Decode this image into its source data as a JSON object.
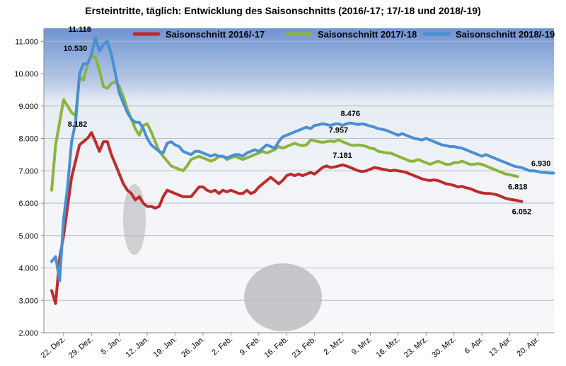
{
  "chart_data": {
    "type": "line",
    "title": "Ersteintritte, täglich: Entwicklung des Saisonschnitts (2016/-17; 17/-18 und 2018/-19)",
    "legend": "top",
    "grid": true,
    "ylim": [
      2000,
      11400
    ],
    "yticks": [
      {
        "value": 2000,
        "label": "2.000"
      },
      {
        "value": 3000,
        "label": "3.000"
      },
      {
        "value": 4000,
        "label": "4.000"
      },
      {
        "value": 5000,
        "label": "5.000"
      },
      {
        "value": 6000,
        "label": "6.000"
      },
      {
        "value": 7000,
        "label": "7.000"
      },
      {
        "value": 8000,
        "label": "8.000"
      },
      {
        "value": 9000,
        "label": "9.000"
      },
      {
        "value": 10000,
        "label": "10.000"
      },
      {
        "value": 11000,
        "label": "11.000"
      }
    ],
    "categories": [
      null,
      null,
      null,
      "22. Dez.",
      null,
      null,
      null,
      null,
      null,
      null,
      "29. Dez.",
      null,
      null,
      null,
      null,
      null,
      null,
      "5. Jan.",
      null,
      null,
      null,
      null,
      null,
      null,
      "12. Jan.",
      null,
      null,
      null,
      null,
      null,
      null,
      "19. Jan.",
      null,
      null,
      null,
      null,
      null,
      null,
      "26. Jan.",
      null,
      null,
      null,
      null,
      null,
      null,
      "2. Feb.",
      null,
      null,
      null,
      null,
      null,
      null,
      "9. Feb.",
      null,
      null,
      null,
      null,
      null,
      null,
      "16. Feb.",
      null,
      null,
      null,
      null,
      null,
      null,
      "23. Feb.",
      null,
      null,
      null,
      null,
      null,
      null,
      "2. Mrz.",
      null,
      null,
      null,
      null,
      null,
      null,
      "9. Mrz.",
      null,
      null,
      null,
      null,
      null,
      null,
      "16. Mrz.",
      null,
      null,
      null,
      null,
      null,
      null,
      "23. Mrz.",
      null,
      null,
      null,
      null,
      null,
      null,
      "30. Mrz.",
      null,
      null,
      null,
      null,
      null,
      null,
      "6. Apr.",
      null,
      null,
      null,
      null,
      null,
      null,
      "13. Apr.",
      null,
      null,
      null,
      null,
      null,
      null,
      "20. Apr.",
      null,
      null,
      null,
      null
    ],
    "series": [
      {
        "name": "Saisonschnitt 2016/-17",
        "color": "#be2b2b",
        "values": [
          3300,
          2900,
          4300,
          5000,
          5900,
          6800,
          7300,
          7800,
          7900,
          8000,
          8182,
          7900,
          7600,
          7900,
          7900,
          7500,
          7200,
          6900,
          6600,
          6400,
          6300,
          6100,
          6200,
          6000,
          5900,
          5900,
          5850,
          5900,
          6200,
          6400,
          6350,
          6300,
          6250,
          6200,
          6200,
          6200,
          6350,
          6500,
          6500,
          6400,
          6350,
          6400,
          6300,
          6400,
          6350,
          6400,
          6350,
          6300,
          6300,
          6400,
          6300,
          6350,
          6500,
          6600,
          6700,
          6800,
          6700,
          6600,
          6700,
          6850,
          6900,
          6850,
          6900,
          6850,
          6900,
          6950,
          6900,
          7000,
          7100,
          7150,
          7100,
          7120,
          7150,
          7181,
          7150,
          7100,
          7050,
          7000,
          6980,
          7000,
          7050,
          7100,
          7080,
          7050,
          7030,
          7000,
          7020,
          7000,
          6980,
          6950,
          6900,
          6850,
          6800,
          6750,
          6720,
          6700,
          6720,
          6700,
          6650,
          6600,
          6580,
          6550,
          6500,
          6520,
          6480,
          6450,
          6400,
          6350,
          6320,
          6300,
          6300,
          6280,
          6250,
          6200,
          6150,
          6120,
          6100,
          6080,
          6052,
          null,
          null,
          null,
          null,
          null,
          null,
          null,
          null
        ],
        "value_labels": [
          null,
          null,
          null,
          null,
          null,
          null,
          null,
          null,
          null,
          null,
          "8.182",
          null,
          null,
          null,
          null,
          null,
          null,
          null,
          null,
          null,
          null,
          null,
          null,
          null,
          null,
          null,
          null,
          null,
          null,
          null,
          null,
          null,
          null,
          null,
          null,
          null,
          null,
          null,
          null,
          null,
          null,
          null,
          null,
          null,
          null,
          null,
          null,
          null,
          null,
          null,
          null,
          null,
          null,
          null,
          null,
          null,
          null,
          null,
          null,
          null,
          null,
          null,
          null,
          null,
          null,
          null,
          null,
          null,
          null,
          null,
          null,
          null,
          null,
          "7.181",
          null,
          null,
          null,
          null,
          null,
          null,
          null,
          null,
          null,
          null,
          null,
          null,
          null,
          null,
          null,
          null,
          null,
          null,
          null,
          null,
          null,
          null,
          null,
          null,
          null,
          null,
          null,
          null,
          null,
          null,
          null,
          null,
          null,
          null,
          null,
          null,
          null,
          null,
          null,
          null,
          null,
          null,
          null,
          null,
          "6.052",
          null,
          null,
          null,
          null,
          null,
          null,
          null,
          null
        ]
      },
      {
        "name": "Saisonschnitt 2017/-18",
        "color": "#8cb43c",
        "values": [
          6400,
          7800,
          8500,
          9200,
          9000,
          8800,
          8700,
          9900,
          9800,
          10300,
          10530,
          10500,
          10100,
          9600,
          9550,
          9700,
          9750,
          9600,
          9300,
          8900,
          8600,
          8300,
          8100,
          8400,
          8450,
          8200,
          7900,
          7600,
          7450,
          7300,
          7150,
          7100,
          7050,
          7000,
          7150,
          7350,
          7400,
          7450,
          7400,
          7350,
          7300,
          7350,
          7450,
          7450,
          7350,
          7400,
          7450,
          7400,
          7350,
          7400,
          7450,
          7500,
          7550,
          7600,
          7550,
          7600,
          7650,
          7750,
          7700,
          7750,
          7800,
          7850,
          7800,
          7780,
          7800,
          7950,
          7930,
          7900,
          7880,
          7900,
          7920,
          7900,
          7957,
          7900,
          7850,
          7800,
          7780,
          7800,
          7780,
          7750,
          7700,
          7680,
          7600,
          7580,
          7550,
          7550,
          7500,
          7450,
          7400,
          7350,
          7300,
          7300,
          7350,
          7300,
          7250,
          7200,
          7250,
          7300,
          7250,
          7200,
          7200,
          7250,
          7250,
          7300,
          7250,
          7200,
          7200,
          7220,
          7200,
          7150,
          7100,
          7050,
          7000,
          6950,
          6900,
          6880,
          6850,
          6818,
          null,
          null,
          null,
          null,
          null,
          null,
          null,
          null,
          null
        ],
        "value_labels": [
          null,
          null,
          null,
          null,
          null,
          null,
          null,
          null,
          null,
          null,
          "10.530",
          null,
          null,
          null,
          null,
          null,
          null,
          null,
          null,
          null,
          null,
          null,
          null,
          null,
          null,
          null,
          null,
          null,
          null,
          null,
          null,
          null,
          null,
          null,
          null,
          null,
          null,
          null,
          null,
          null,
          null,
          null,
          null,
          null,
          null,
          null,
          null,
          null,
          null,
          null,
          null,
          null,
          null,
          null,
          null,
          null,
          null,
          null,
          null,
          null,
          null,
          null,
          null,
          null,
          null,
          null,
          null,
          null,
          null,
          null,
          null,
          null,
          "7.957",
          null,
          null,
          null,
          null,
          null,
          null,
          null,
          null,
          null,
          null,
          null,
          null,
          null,
          null,
          null,
          null,
          null,
          null,
          null,
          null,
          null,
          null,
          null,
          null,
          null,
          null,
          null,
          null,
          null,
          null,
          null,
          null,
          null,
          null,
          null,
          null,
          null,
          null,
          null,
          null,
          null,
          null,
          null,
          null,
          "6.818",
          null,
          null,
          null,
          null,
          null,
          null,
          null,
          null,
          null
        ]
      },
      {
        "name": "Saisonschnitt 2018/-19",
        "color": "#4a8fd4",
        "values": [
          4200,
          4350,
          3600,
          5500,
          6500,
          7900,
          8500,
          10000,
          10300,
          10300,
          10600,
          11118,
          10700,
          10900,
          11000,
          10600,
          10000,
          9400,
          9100,
          8800,
          8600,
          8500,
          8500,
          8300,
          8000,
          7800,
          7700,
          7600,
          7550,
          7850,
          7900,
          7800,
          7750,
          7600,
          7550,
          7500,
          7600,
          7600,
          7550,
          7500,
          7450,
          7500,
          7450,
          7450,
          7400,
          7450,
          7500,
          7500,
          7450,
          7550,
          7600,
          7650,
          7600,
          7700,
          7800,
          7750,
          7700,
          7900,
          8050,
          8100,
          8150,
          8200,
          8250,
          8300,
          8350,
          8300,
          8400,
          8420,
          8450,
          8430,
          8400,
          8440,
          8450,
          8400,
          8450,
          8476,
          8450,
          8430,
          8450,
          8420,
          8380,
          8350,
          8300,
          8280,
          8250,
          8200,
          8150,
          8100,
          8150,
          8100,
          8050,
          8000,
          7980,
          7950,
          8000,
          7950,
          7900,
          7850,
          7800,
          7780,
          7750,
          7750,
          7720,
          7700,
          7650,
          7600,
          7550,
          7500,
          7450,
          7500,
          7450,
          7400,
          7350,
          7300,
          7250,
          7200,
          7150,
          7120,
          7100,
          7050,
          7000,
          7000,
          6980,
          6950,
          6950,
          6930,
          6930
        ],
        "value_labels": [
          null,
          null,
          null,
          null,
          null,
          null,
          null,
          null,
          null,
          null,
          null,
          "11.118",
          null,
          null,
          null,
          null,
          null,
          null,
          null,
          null,
          null,
          null,
          null,
          null,
          null,
          null,
          null,
          null,
          null,
          null,
          null,
          null,
          null,
          null,
          null,
          null,
          null,
          null,
          null,
          null,
          null,
          null,
          null,
          null,
          null,
          null,
          null,
          null,
          null,
          null,
          null,
          null,
          null,
          null,
          null,
          null,
          null,
          null,
          null,
          null,
          null,
          null,
          null,
          null,
          null,
          null,
          null,
          null,
          null,
          null,
          null,
          null,
          null,
          null,
          null,
          "8.476",
          null,
          null,
          null,
          null,
          null,
          null,
          null,
          null,
          null,
          null,
          null,
          null,
          null,
          null,
          null,
          null,
          null,
          null,
          null,
          null,
          null,
          null,
          null,
          null,
          null,
          null,
          null,
          null,
          null,
          null,
          null,
          null,
          null,
          null,
          null,
          null,
          null,
          null,
          null,
          null,
          null,
          null,
          null,
          null,
          null,
          null,
          null,
          null,
          null,
          null,
          "6.930"
        ]
      }
    ]
  }
}
